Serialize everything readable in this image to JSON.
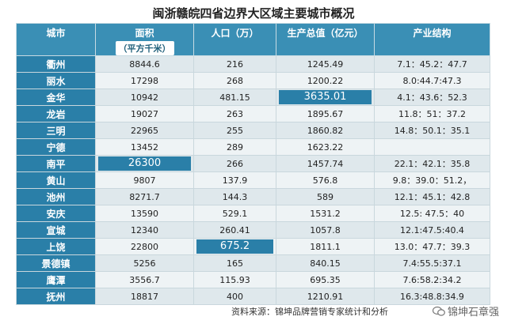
{
  "title": "闽浙赣皖四省边界大区域主要城市概况",
  "columns": {
    "city": "城市",
    "area": "面积",
    "area_unit": "（平方千米）",
    "population": "人口（万）",
    "gdp": "生产总值（亿元）",
    "structure": "产业结构"
  },
  "rows": [
    {
      "city": "衢州",
      "area": "8844.6",
      "population": "216",
      "gdp": "1245.49",
      "structure": "7.1：45.2：47.7"
    },
    {
      "city": "丽水",
      "area": "17298",
      "population": "268",
      "gdp": "1200.22",
      "structure": "8.0:44.7:47.3"
    },
    {
      "city": "金华",
      "area": "10942",
      "population": "481.15",
      "gdp": "3635.01",
      "structure": "4.1：43.6：52.3",
      "highlight": "gdp"
    },
    {
      "city": "龙岩",
      "area": "19027",
      "population": "263",
      "gdp": "1895.67",
      "structure": "11.8：51：37.2"
    },
    {
      "city": "三明",
      "area": "22965",
      "population": "255",
      "gdp": "1860.82",
      "structure": "14.8：50.1：35.1"
    },
    {
      "city": "宁德",
      "area": "13452",
      "population": "289",
      "gdp": "1623.22",
      "structure": ""
    },
    {
      "city": "南平",
      "area": "26300",
      "population": "266",
      "gdp": "1457.74",
      "structure": "22.1：42.1：35.8",
      "highlight": "area"
    },
    {
      "city": "黄山",
      "area": "9807",
      "population": "137.9",
      "gdp": "576.8",
      "structure": "9.8：39.0：51.2，"
    },
    {
      "city": "池州",
      "area": "8271.7",
      "population": "144.3",
      "gdp": "589",
      "structure": "12.1：45.1：42.8"
    },
    {
      "city": "安庆",
      "area": "13590",
      "population": "529.1",
      "gdp": "1531.2",
      "structure": "12.5: 47.5：40"
    },
    {
      "city": "宣城",
      "area": "12340",
      "population": "260.41",
      "gdp": "1057.8",
      "structure": "12.1:47.5:40.4"
    },
    {
      "city": "上饶",
      "area": "22800",
      "population": "675.2",
      "gdp": "1811.1",
      "structure": "13.0：47.7：39.3",
      "highlight": "population"
    },
    {
      "city": "景德镇",
      "area": "5256",
      "population": "165",
      "gdp": "840.15",
      "structure": "7.4:55.5:37.1"
    },
    {
      "city": "鹰潭",
      "area": "3556.7",
      "population": "115.93",
      "gdp": "695.35",
      "structure": "7.6:58.2:34.2"
    },
    {
      "city": "抚州",
      "area": "18817",
      "population": "400",
      "gdp": "1210.91",
      "structure": "16.3:48.8:34.9"
    }
  ],
  "source": "资料来源：锦坤品牌营销专家统计和分析",
  "watermark": "锦坤石章强",
  "icons": {
    "watermark": "wechat-icon"
  },
  "colors": {
    "header": "#3a8fb5",
    "city_cell": "#2a7fa8",
    "row_a": "#dfe8ec",
    "row_b": "#eef3f5"
  }
}
